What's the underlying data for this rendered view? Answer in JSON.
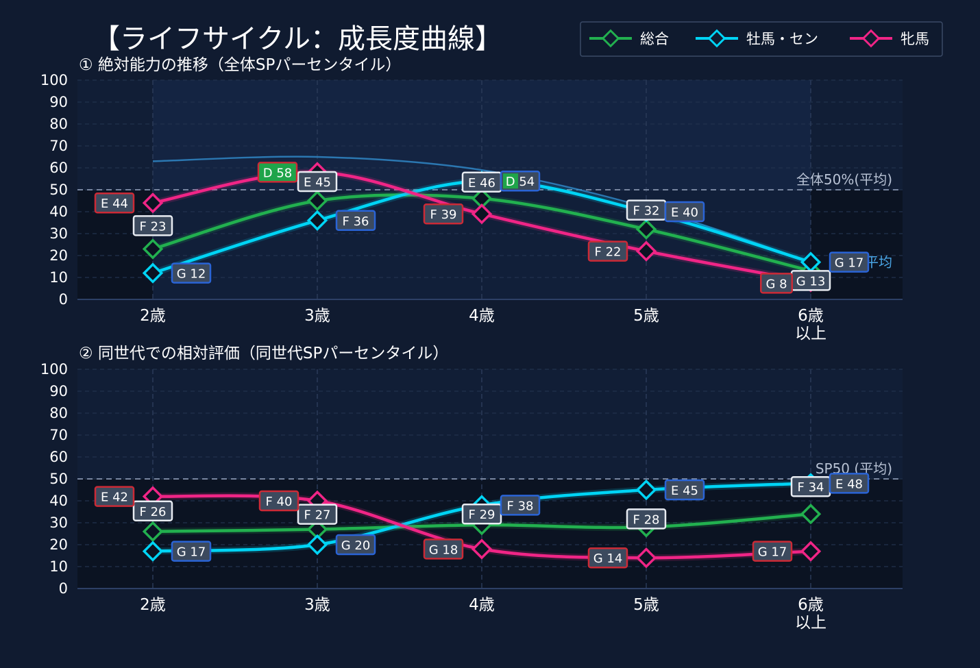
{
  "title": "【ライフサイクル：成長度曲線】",
  "legend": [
    {
      "label": "総合",
      "color": "#22b04f"
    },
    {
      "label": "牡馬・セン",
      "color": "#00d4f5"
    },
    {
      "label": "牝馬",
      "color": "#f02586"
    }
  ],
  "colors": {
    "background": "#101b30",
    "plot_bg": "#0b1322",
    "band": "#172a4c",
    "label_red_border": "#cc2a36",
    "label_blue_border": "#2a64d6",
    "label_white_border": "#e8ecf2",
    "label_green_fill": "#1fa44a",
    "label_dark_fill": "#3c4a5e"
  },
  "chart_data": [
    {
      "type": "line",
      "subtitle": "① 絶対能力の推移（全体SPパーセンタイル）",
      "categories": [
        "2歳",
        "3歳",
        "4歳",
        "5歳",
        "6歳\n以上"
      ],
      "ylim": [
        0,
        100
      ],
      "yticks": [
        0,
        10,
        20,
        30,
        40,
        50,
        60,
        70,
        80,
        90,
        100
      ],
      "grid": true,
      "reference_line": {
        "value": 50,
        "label": "全体50%(平均)"
      },
      "secondary_label": "年齢平均",
      "background_curve": [
        63,
        65,
        59,
        42,
        17
      ],
      "series": [
        {
          "name": "総合",
          "color": "#22b04f",
          "values": [
            23,
            45,
            46,
            32,
            13
          ],
          "labels": [
            "F 23",
            "E 45",
            "E 46",
            "F 32",
            "G 13"
          ]
        },
        {
          "name": "牡馬・セン",
          "color": "#00d4f5",
          "values": [
            12,
            36,
            54,
            40,
            17
          ],
          "labels": [
            "G 12",
            "F 36",
            "D 54",
            "E 40",
            "G 17"
          ]
        },
        {
          "name": "牝馬",
          "color": "#f02586",
          "values": [
            44,
            58,
            39,
            22,
            8
          ],
          "labels": [
            "E 44",
            "D 58",
            "F 39",
            "F 22",
            "G 8"
          ]
        }
      ]
    },
    {
      "type": "line",
      "subtitle": "② 同世代での相対評価（同世代SPパーセンタイル）",
      "categories": [
        "2歳",
        "3歳",
        "4歳",
        "5歳",
        "6歳\n以上"
      ],
      "ylim": [
        0,
        100
      ],
      "yticks": [
        0,
        10,
        20,
        30,
        40,
        50,
        60,
        70,
        80,
        90,
        100
      ],
      "grid": true,
      "reference_line": {
        "value": 50,
        "label": "SP50 (平均)"
      },
      "series": [
        {
          "name": "総合",
          "color": "#22b04f",
          "values": [
            26,
            27,
            29,
            28,
            34
          ],
          "labels": [
            "F 26",
            "F 27",
            "F 29",
            "F 28",
            "F 34"
          ]
        },
        {
          "name": "牡馬・セン",
          "color": "#00d4f5",
          "values": [
            17,
            20,
            38,
            45,
            48
          ],
          "labels": [
            "G 17",
            "G 20",
            "F 38",
            "E 45",
            "E 48"
          ]
        },
        {
          "name": "牝馬",
          "color": "#f02586",
          "values": [
            42,
            40,
            18,
            14,
            17
          ],
          "labels": [
            "E 42",
            "F 40",
            "G 18",
            "G 14",
            "G 17"
          ]
        }
      ]
    }
  ]
}
